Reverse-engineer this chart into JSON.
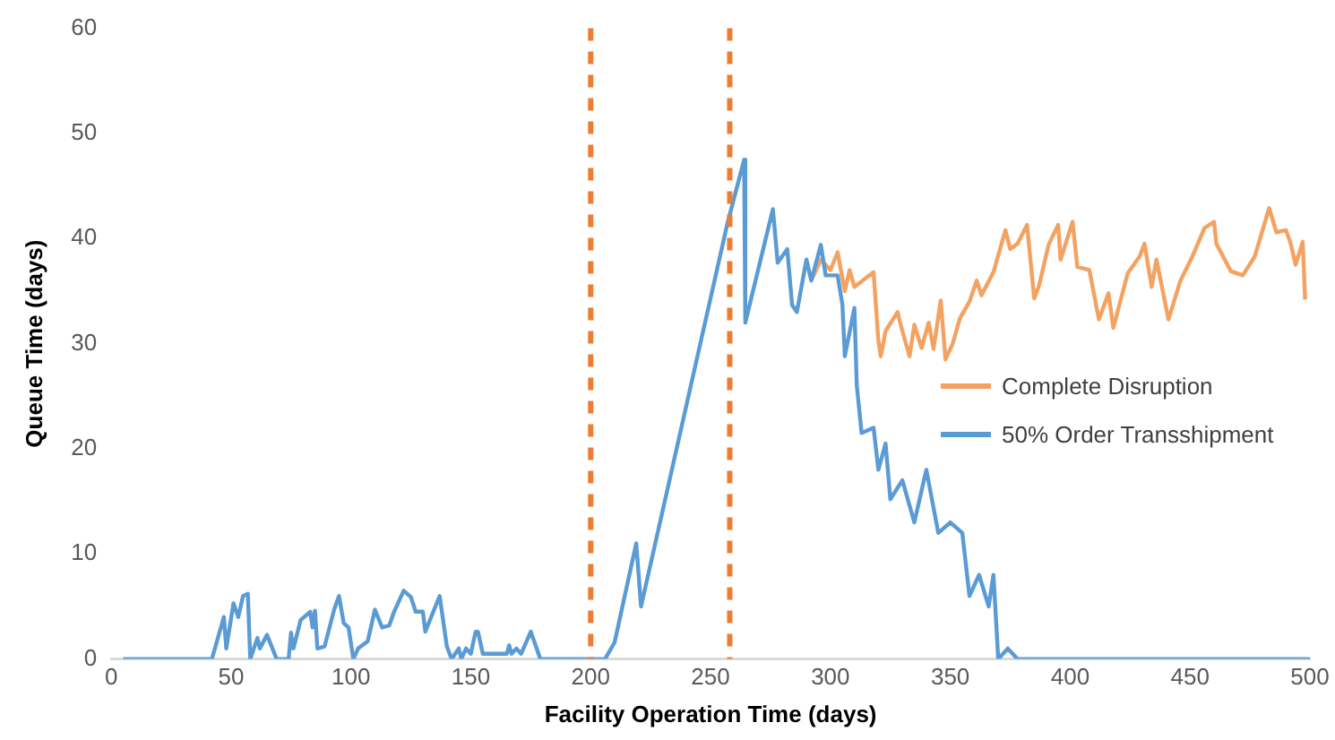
{
  "chart_data": {
    "type": "line",
    "xlabel": "Facility Operation Time (days)",
    "ylabel": "Queue Time (days)",
    "xlim": [
      0,
      500
    ],
    "xticks": [
      0,
      50,
      100,
      150,
      200,
      250,
      300,
      350,
      400,
      450,
      500
    ],
    "ylim": [
      0,
      60
    ],
    "yticks": [
      0,
      10,
      20,
      30,
      40,
      50,
      60
    ],
    "grid": false,
    "legend": "right",
    "marker": "none",
    "line_style": "solid",
    "ref_lines": [
      {
        "axis": "x",
        "value": 200,
        "color": "#ed7d31",
        "line_style": "dashed"
      },
      {
        "axis": "x",
        "value": 258,
        "color": "#ed7d31",
        "line_style": "dashed"
      }
    ],
    "series": [
      {
        "name": "Complete Disruption",
        "color": "#f4a262",
        "x": [
          292,
          296,
          300,
          303,
          306,
          308,
          310,
          318,
          320,
          321,
          323,
          328,
          330,
          333,
          335,
          338,
          341,
          343,
          346,
          348,
          351,
          354,
          358,
          361,
          363,
          368,
          373,
          375,
          378,
          382,
          385,
          387,
          391,
          395,
          396,
          401,
          403,
          408,
          412,
          416,
          418,
          424,
          429,
          431,
          434,
          436,
          441,
          446,
          451,
          456,
          460,
          461,
          467,
          472,
          477,
          483,
          486,
          490,
          492,
          494,
          497,
          498
        ],
        "values": [
          36,
          38,
          37,
          38.7,
          35,
          37,
          35.4,
          36.8,
          30.3,
          28.8,
          31.2,
          33,
          31.2,
          28.8,
          31.8,
          29.6,
          32,
          29.5,
          34.1,
          28.5,
          30,
          32.4,
          34,
          36,
          34.6,
          36.8,
          40.8,
          39,
          39.5,
          41.3,
          34.3,
          35.5,
          39.4,
          41.3,
          38,
          41.6,
          37.3,
          37,
          32.3,
          34.8,
          31.5,
          36.7,
          38.3,
          39.5,
          35.4,
          38,
          32.3,
          36,
          38.3,
          41,
          41.6,
          39.5,
          36.9,
          36.5,
          38.3,
          42.9,
          40.6,
          40.8,
          39.5,
          37.5,
          39.7,
          34.2
        ]
      },
      {
        "name": "50% Order Transshipment",
        "color": "#5b9bd5",
        "x": [
          5,
          42,
          47,
          48,
          51,
          53,
          55,
          57,
          58,
          61,
          62,
          65,
          69,
          74,
          75,
          76,
          79,
          83,
          84,
          85,
          86,
          89,
          93,
          95,
          97,
          99,
          101,
          103,
          107,
          110,
          113,
          116,
          118,
          122,
          125,
          127,
          130,
          131,
          137,
          140,
          142,
          145,
          146,
          148,
          150,
          152,
          153,
          155,
          165,
          166,
          167,
          169,
          171,
          175,
          179,
          206,
          210,
          219,
          221,
          257,
          264,
          264.5,
          276,
          278,
          282,
          284,
          286,
          290,
          292,
          296,
          298,
          303,
          305,
          306,
          310,
          311,
          313,
          318,
          320,
          323,
          325,
          330,
          335,
          340,
          345,
          350,
          355,
          358,
          362,
          366,
          368,
          370,
          374,
          378,
          500
        ],
        "values": [
          0,
          0,
          4,
          1,
          5.3,
          4,
          6,
          6.2,
          0,
          2,
          1,
          2.3,
          0,
          0,
          2.5,
          1,
          3.7,
          4.5,
          3,
          4.6,
          1,
          1.2,
          4.7,
          6,
          3.4,
          3,
          0,
          1,
          1.7,
          4.7,
          3,
          3.2,
          4.5,
          6.5,
          5.9,
          4.5,
          4.5,
          2.6,
          6,
          1.2,
          0,
          1,
          0,
          1,
          0.5,
          2.6,
          2.6,
          0.5,
          0.5,
          1.3,
          0.5,
          1,
          0.5,
          2.6,
          0,
          0,
          1.6,
          11,
          5,
          41.4,
          47.5,
          32,
          42.8,
          37.7,
          39,
          33.7,
          33,
          38,
          36,
          39.4,
          36.5,
          36.5,
          33.7,
          28.8,
          33.4,
          26,
          21.5,
          22,
          18,
          20.5,
          15.2,
          17,
          13,
          18,
          12,
          13,
          12,
          6,
          8,
          5,
          8,
          0,
          1,
          0,
          0
        ]
      }
    ]
  }
}
